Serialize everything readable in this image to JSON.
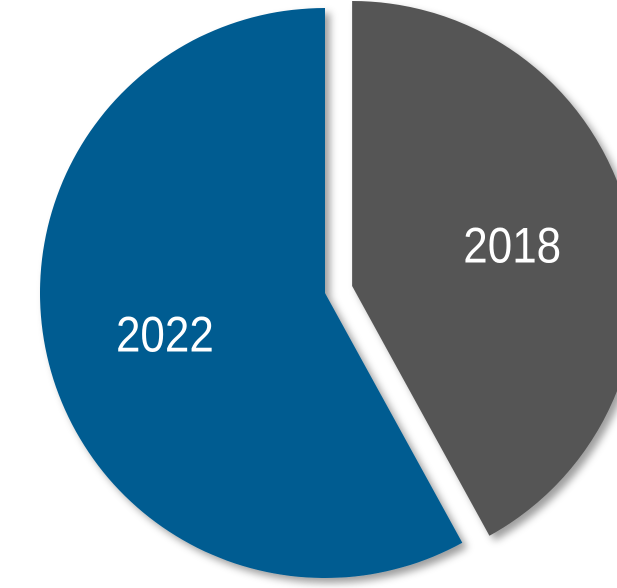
{
  "chart_data": {
    "type": "pie",
    "categories": [
      "2018",
      "2022"
    ],
    "values": [
      42,
      58
    ],
    "start_angle_deg": 0,
    "direction": "clockwise",
    "exploded": [
      "2018"
    ],
    "colors": {
      "2018": "#555555",
      "2022": "#045b91"
    },
    "title": "",
    "legend": "none",
    "labels_inside": true
  }
}
